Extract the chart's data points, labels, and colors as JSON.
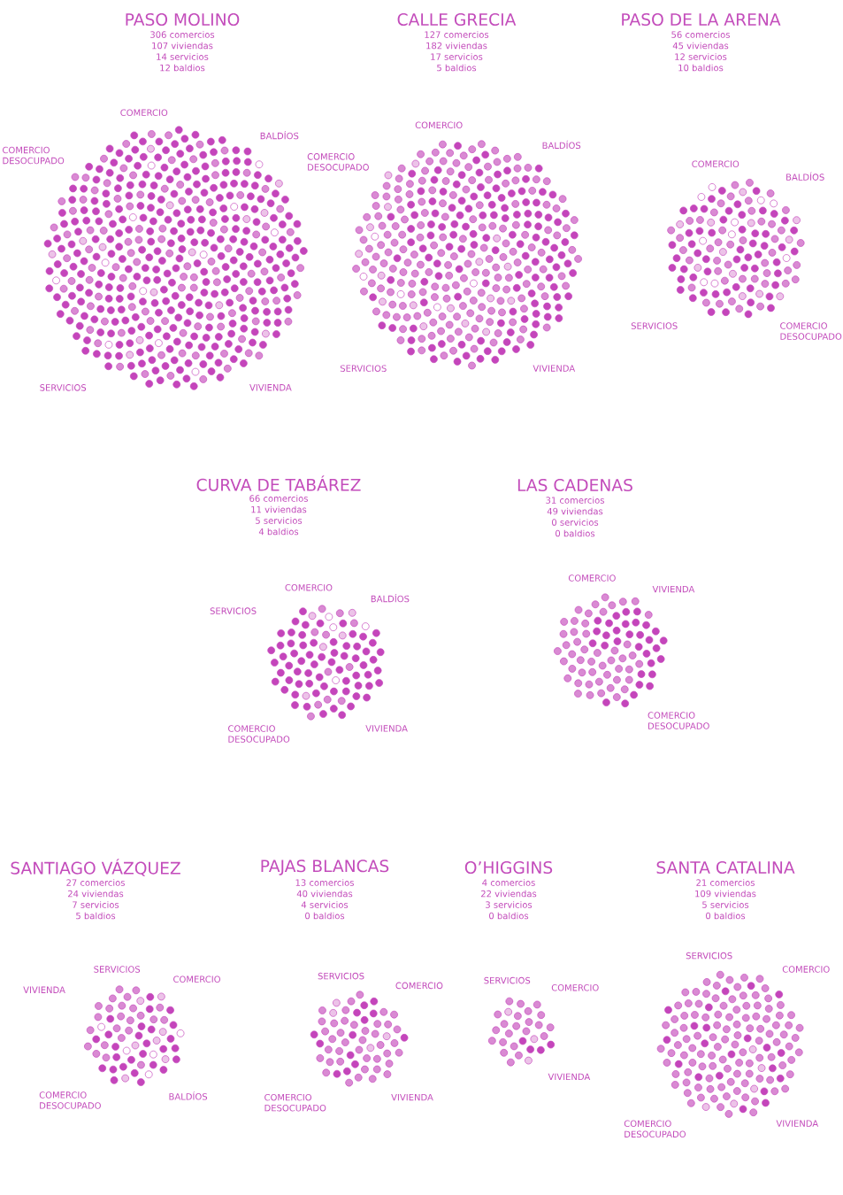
{
  "chart_data": [
    {
      "type": "other",
      "title": "PASO MOLINO",
      "categories": [
        "comercios",
        "viviendas",
        "servicios",
        "baldios"
      ],
      "values": [
        306,
        107,
        14,
        12
      ],
      "data_labels": true,
      "colors": [
        "#c445bb",
        "#d98ad3",
        "#ecc3e8",
        "#ffffff"
      ],
      "annotations": [
        "COMERCIO",
        "BALDÍOS",
        "VIVIENDA",
        "SERVICIOS",
        "COMERCIO DESOCUPADO"
      ]
    },
    {
      "type": "other",
      "title": "CALLE GRECIA",
      "categories": [
        "comercios",
        "viviendas",
        "servicios",
        "baldios"
      ],
      "values": [
        127,
        182,
        17,
        5
      ],
      "data_labels": true,
      "colors": [
        "#c445bb",
        "#d98ad3",
        "#ecc3e8",
        "#ffffff"
      ],
      "annotations": [
        "COMERCIO",
        "BALDÍOS",
        "VIVIENDA",
        "SERVICIOS",
        "COMERCIO DESOCUPADO"
      ]
    },
    {
      "type": "other",
      "title": "PASO DE LA ARENA",
      "categories": [
        "comercios",
        "viviendas",
        "servicios",
        "baldios"
      ],
      "values": [
        56,
        45,
        12,
        10
      ],
      "data_labels": true,
      "colors": [
        "#c445bb",
        "#d98ad3",
        "#ecc3e8",
        "#ffffff"
      ],
      "annotations": [
        "COMERCIO",
        "BALDÍOS",
        "COMERCIO DESOCUPADO",
        "SERVICIOS"
      ]
    },
    {
      "type": "other",
      "title": "CURVA DE TABÁREZ",
      "categories": [
        "comercios",
        "viviendas",
        "servicios",
        "baldios"
      ],
      "values": [
        66,
        11,
        5,
        4
      ],
      "data_labels": true,
      "colors": [
        "#c445bb",
        "#d98ad3",
        "#ecc3e8",
        "#ffffff"
      ],
      "annotations": [
        "COMERCIO",
        "BALDÍOS",
        "VIVIENDA",
        "COMERCIO DESOCUPADO",
        "SERVICIOS"
      ]
    },
    {
      "type": "other",
      "title": "LAS CADENAS",
      "categories": [
        "comercios",
        "viviendas",
        "servicios",
        "baldios"
      ],
      "values": [
        31,
        49,
        0,
        0
      ],
      "data_labels": true,
      "colors": [
        "#c445bb",
        "#d98ad3",
        "#ecc3e8",
        "#ffffff"
      ],
      "annotations": [
        "COMERCIO",
        "VIVIENDA",
        "COMERCIO DESOCUPADO"
      ]
    },
    {
      "type": "other",
      "title": "SANTIAGO VÁZQUEZ",
      "categories": [
        "comercios",
        "viviendas",
        "servicios",
        "baldios"
      ],
      "values": [
        27,
        24,
        7,
        5
      ],
      "data_labels": true,
      "colors": [
        "#c445bb",
        "#d98ad3",
        "#ecc3e8",
        "#ffffff"
      ],
      "annotations": [
        "SERVICIOS",
        "COMERCIO",
        "BALDÍOS",
        "COMERCIO DESOCUPADO",
        "VIVIENDA"
      ]
    },
    {
      "type": "other",
      "title": "PAJAS BLANCAS",
      "categories": [
        "comercios",
        "viviendas",
        "servicios",
        "baldios"
      ],
      "values": [
        13,
        40,
        4,
        0
      ],
      "data_labels": true,
      "colors": [
        "#c445bb",
        "#d98ad3",
        "#ecc3e8",
        "#ffffff"
      ],
      "annotations": [
        "SERVICIOS",
        "COMERCIO",
        "VIVIENDA",
        "COMERCIO DESOCUPADO"
      ]
    },
    {
      "type": "other",
      "title": "O’HIGGINS",
      "categories": [
        "comercios",
        "viviendas",
        "servicios",
        "baldios"
      ],
      "values": [
        4,
        22,
        3,
        0
      ],
      "data_labels": true,
      "colors": [
        "#c445bb",
        "#d98ad3",
        "#ecc3e8",
        "#ffffff"
      ],
      "annotations": [
        "SERVICIOS",
        "COMERCIO",
        "VIVIENDA"
      ]
    },
    {
      "type": "other",
      "title": "SANTA CATALINA",
      "categories": [
        "comercios",
        "viviendas",
        "servicios",
        "baldios"
      ],
      "values": [
        21,
        109,
        5,
        0
      ],
      "data_labels": true,
      "colors": [
        "#c445bb",
        "#d98ad3",
        "#ecc3e8",
        "#ffffff"
      ],
      "annotations": [
        "SERVICIOS",
        "COMERCIO",
        "VIVIENDA",
        "COMERCIO DESOCUPADO"
      ]
    }
  ]
}
